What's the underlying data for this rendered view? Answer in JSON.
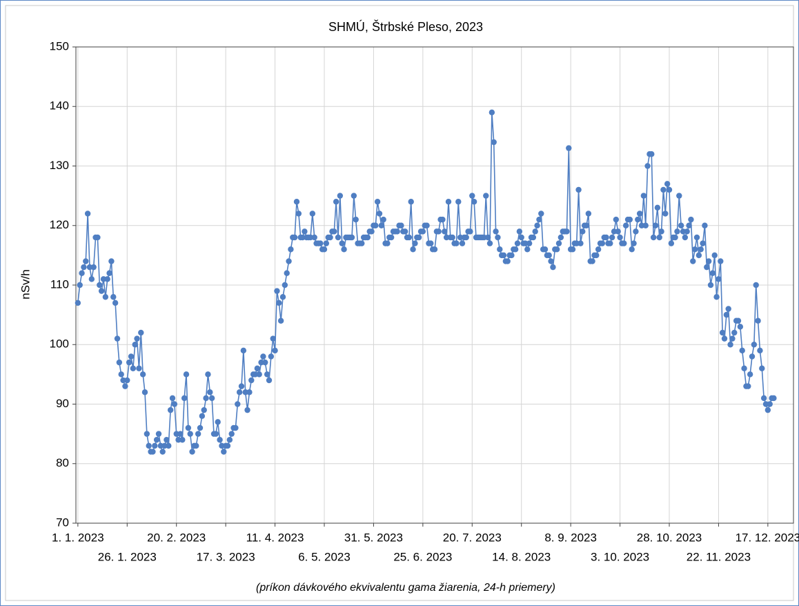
{
  "chart_data": {
    "type": "line",
    "title": "SHMÚ, Štrbské Pleso, 2023",
    "y_label": "nSv/h",
    "subtitle": "(príkon dávkového ekvivalentu gama žiarenia, 24-h priemery)",
    "color": "#4f7ec2",
    "grid": true,
    "markers": true,
    "xlim": [
      -1,
      363
    ],
    "ylim": [
      70,
      150
    ],
    "yticks": [
      70,
      80,
      90,
      100,
      110,
      120,
      130,
      140,
      150
    ],
    "xticks": [
      {
        "value": 0,
        "label": "1. 1. 2023"
      },
      {
        "value": 25,
        "label": "26. 1. 2023"
      },
      {
        "value": 50,
        "label": "20. 2. 2023"
      },
      {
        "value": 75,
        "label": "17. 3. 2023"
      },
      {
        "value": 100,
        "label": "11. 4. 2023"
      },
      {
        "value": 125,
        "label": "6. 5. 2023"
      },
      {
        "value": 150,
        "label": "31. 5. 2023"
      },
      {
        "value": 175,
        "label": "25. 6. 2023"
      },
      {
        "value": 200,
        "label": "20. 7. 2023"
      },
      {
        "value": 225,
        "label": "14. 8. 2023"
      },
      {
        "value": 250,
        "label": "8. 9. 2023"
      },
      {
        "value": 275,
        "label": "3. 10. 2023"
      },
      {
        "value": 300,
        "label": "28. 10. 2023"
      },
      {
        "value": 325,
        "label": "22. 11. 2023"
      },
      {
        "value": 350,
        "label": "17. 12. 2023"
      }
    ],
    "x": [
      0,
      1,
      2,
      3,
      4,
      5,
      6,
      7,
      8,
      9,
      10,
      11,
      12,
      13,
      14,
      15,
      16,
      17,
      18,
      19,
      20,
      21,
      22,
      23,
      24,
      25,
      26,
      27,
      28,
      29,
      30,
      31,
      32,
      33,
      34,
      35,
      36,
      37,
      38,
      39,
      40,
      41,
      42,
      43,
      44,
      45,
      46,
      47,
      48,
      49,
      50,
      51,
      52,
      53,
      54,
      55,
      56,
      57,
      58,
      59,
      60,
      61,
      62,
      63,
      64,
      65,
      66,
      67,
      68,
      69,
      70,
      71,
      72,
      73,
      74,
      75,
      76,
      77,
      78,
      79,
      80,
      81,
      82,
      83,
      84,
      85,
      86,
      87,
      88,
      89,
      90,
      91,
      92,
      93,
      94,
      95,
      96,
      97,
      98,
      99,
      100,
      101,
      102,
      103,
      104,
      105,
      106,
      107,
      108,
      109,
      110,
      111,
      112,
      113,
      114,
      115,
      116,
      117,
      118,
      119,
      120,
      121,
      122,
      123,
      124,
      125,
      126,
      127,
      128,
      129,
      130,
      131,
      132,
      133,
      134,
      135,
      136,
      137,
      138,
      139,
      140,
      141,
      142,
      143,
      144,
      145,
      146,
      147,
      148,
      149,
      150,
      151,
      152,
      153,
      154,
      155,
      156,
      157,
      158,
      159,
      160,
      161,
      162,
      163,
      164,
      165,
      166,
      167,
      168,
      169,
      170,
      171,
      172,
      173,
      174,
      175,
      176,
      177,
      178,
      179,
      180,
      181,
      182,
      183,
      184,
      185,
      186,
      187,
      188,
      189,
      190,
      191,
      192,
      193,
      194,
      195,
      196,
      197,
      198,
      199,
      200,
      201,
      202,
      203,
      204,
      205,
      206,
      207,
      208,
      209,
      210,
      211,
      212,
      213,
      214,
      215,
      216,
      217,
      218,
      219,
      220,
      221,
      222,
      223,
      224,
      225,
      226,
      227,
      228,
      229,
      230,
      231,
      232,
      233,
      234,
      235,
      236,
      237,
      238,
      239,
      240,
      241,
      242,
      243,
      244,
      245,
      246,
      247,
      248,
      249,
      250,
      251,
      252,
      253,
      254,
      255,
      256,
      257,
      258,
      259,
      260,
      261,
      262,
      263,
      264,
      265,
      266,
      267,
      268,
      269,
      270,
      271,
      272,
      273,
      274,
      275,
      276,
      277,
      278,
      279,
      280,
      281,
      282,
      283,
      284,
      285,
      286,
      287,
      288,
      289,
      290,
      291,
      292,
      293,
      294,
      295,
      296,
      297,
      298,
      299,
      300,
      301,
      302,
      303,
      304,
      305,
      306,
      307,
      308,
      309,
      310,
      311,
      312,
      313,
      314,
      315,
      316,
      317,
      318,
      319,
      320,
      321,
      322,
      323,
      324,
      325,
      326,
      327,
      328,
      329,
      330,
      331,
      332,
      333,
      334,
      335,
      336,
      337,
      338,
      339,
      340,
      341,
      342,
      343,
      344,
      345,
      346,
      347,
      348,
      349,
      350,
      351,
      352,
      353
    ],
    "values": [
      107,
      110,
      112,
      113,
      114,
      122,
      113,
      111,
      113,
      118,
      118,
      110,
      109,
      111,
      108,
      111,
      112,
      114,
      108,
      107,
      101,
      97,
      95,
      94,
      93,
      94,
      97,
      98,
      96,
      100,
      101,
      96,
      102,
      95,
      92,
      85,
      83,
      82,
      82,
      83,
      84,
      85,
      83,
      82,
      83,
      84,
      83,
      89,
      91,
      90,
      85,
      84,
      85,
      84,
      91,
      95,
      86,
      85,
      82,
      83,
      83,
      85,
      86,
      88,
      89,
      91,
      95,
      92,
      91,
      85,
      85,
      87,
      84,
      83,
      82,
      83,
      83,
      84,
      85,
      86,
      86,
      90,
      92,
      93,
      99,
      92,
      89,
      92,
      94,
      95,
      95,
      96,
      95,
      97,
      98,
      97,
      95,
      94,
      98,
      101,
      99,
      109,
      107,
      104,
      108,
      110,
      112,
      114,
      116,
      118,
      118,
      124,
      122,
      118,
      118,
      119,
      118,
      118,
      118,
      122,
      118,
      117,
      117,
      117,
      116,
      116,
      117,
      118,
      118,
      119,
      119,
      124,
      118,
      125,
      117,
      116,
      118,
      118,
      118,
      118,
      125,
      121,
      117,
      117,
      117,
      118,
      118,
      118,
      119,
      119,
      120,
      120,
      124,
      122,
      120,
      121,
      117,
      117,
      118,
      118,
      119,
      119,
      119,
      120,
      120,
      119,
      119,
      118,
      118,
      124,
      116,
      117,
      118,
      118,
      119,
      119,
      120,
      120,
      117,
      117,
      116,
      116,
      119,
      119,
      121,
      121,
      119,
      118,
      124,
      118,
      118,
      117,
      117,
      124,
      118,
      117,
      118,
      118,
      119,
      119,
      125,
      124,
      118,
      118,
      118,
      118,
      118,
      125,
      118,
      117,
      139,
      134,
      119,
      118,
      116,
      115,
      115,
      114,
      114,
      115,
      115,
      116,
      116,
      117,
      119,
      118,
      117,
      117,
      116,
      117,
      118,
      118,
      119,
      120,
      121,
      122,
      116,
      116,
      115,
      115,
      114,
      113,
      116,
      116,
      117,
      118,
      119,
      119,
      119,
      133,
      116,
      116,
      117,
      117,
      126,
      117,
      119,
      120,
      120,
      122,
      114,
      114,
      115,
      115,
      116,
      117,
      117,
      118,
      118,
      117,
      117,
      118,
      119,
      121,
      119,
      118,
      117,
      117,
      120,
      121,
      121,
      116,
      117,
      119,
      121,
      122,
      120,
      125,
      120,
      130,
      132,
      132,
      118,
      120,
      123,
      118,
      119,
      126,
      122,
      127,
      126,
      117,
      118,
      118,
      119,
      125,
      120,
      119,
      118,
      119,
      120,
      121,
      114,
      116,
      118,
      115,
      116,
      117,
      120,
      113,
      114,
      110,
      112,
      115,
      108,
      111,
      114,
      102,
      101,
      105,
      106,
      100,
      101,
      102,
      104,
      104,
      103,
      99,
      96,
      93,
      93,
      95,
      98,
      100,
      110,
      104,
      99,
      96,
      91,
      90,
      89,
      90,
      91,
      91
    ]
  }
}
